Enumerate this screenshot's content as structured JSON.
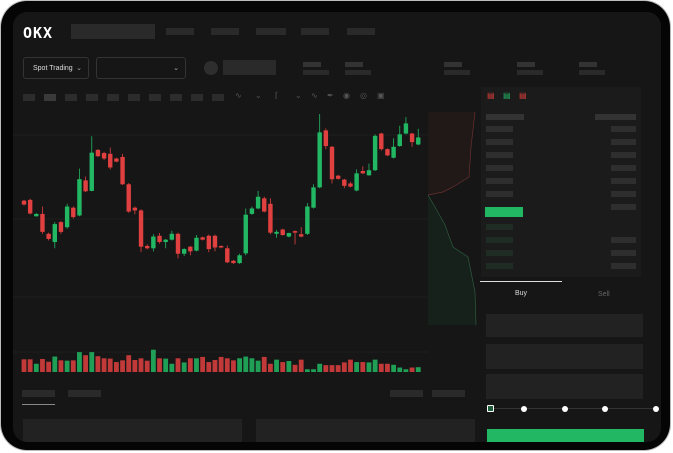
{
  "brand": {
    "logo_text": "OKX"
  },
  "toolbar": {
    "market_type": "Spot Trading",
    "pair_selector": ""
  },
  "order_form": {
    "buy_tab": "Buy",
    "sell_tab": "Sell",
    "active_tab": "Buy",
    "slider_percent": 0,
    "slider_stops": 5
  },
  "colors": {
    "up": "#22b863",
    "down": "#e0403f",
    "background": "#161616",
    "panel": "#1b1b1b"
  },
  "icons": [
    "chevron-down-icon",
    "line-tool-icon",
    "pen-icon",
    "camera-icon",
    "target-icon",
    "fullscreen-icon",
    "orderbook-both-icon",
    "orderbook-bids-icon",
    "orderbook-asks-icon"
  ],
  "chart_data": {
    "type": "candlestick",
    "candles": [
      [
        550,
        552,
        538,
        540
      ],
      [
        552,
        555,
        515,
        517
      ],
      [
        510,
        518,
        509,
        516
      ],
      [
        516,
        535,
        465,
        470
      ],
      [
        465,
        468,
        448,
        452
      ],
      [
        444,
        495,
        428,
        490
      ],
      [
        495,
        498,
        465,
        470
      ],
      [
        482,
        542,
        478,
        535
      ],
      [
        532,
        535,
        504,
        508
      ],
      [
        512,
        632,
        510,
        605
      ],
      [
        602,
        612,
        572,
        574
      ],
      [
        575,
        715,
        574,
        673
      ],
      [
        680,
        682,
        662,
        664
      ],
      [
        672,
        675,
        654,
        658
      ],
      [
        670,
        686,
        630,
        635
      ],
      [
        658,
        660,
        648,
        650
      ],
      [
        662,
        670,
        590,
        592
      ],
      [
        592,
        595,
        519,
        522
      ],
      [
        532,
        535,
        515,
        525
      ],
      [
        525,
        528,
        418,
        432
      ],
      [
        434,
        438,
        425,
        428
      ],
      [
        428,
        464,
        420,
        458
      ],
      [
        460,
        467,
        440,
        444
      ],
      [
        444,
        452,
        428,
        450
      ],
      [
        450,
        473,
        448,
        465
      ],
      [
        465,
        468,
        402,
        414
      ],
      [
        414,
        428,
        408,
        426
      ],
      [
        432,
        434,
        410,
        420
      ],
      [
        422,
        462,
        420,
        455
      ],
      [
        456,
        458,
        448,
        450
      ],
      [
        460,
        463,
        418,
        426
      ],
      [
        460,
        463,
        420,
        430
      ],
      [
        434,
        435,
        428,
        430
      ],
      [
        428,
        435,
        390,
        392
      ],
      [
        396,
        398,
        388,
        390
      ],
      [
        390,
        414,
        388,
        410
      ],
      [
        415,
        530,
        410,
        514
      ],
      [
        516,
        535,
        514,
        530
      ],
      [
        530,
        575,
        528,
        560
      ],
      [
        556,
        560,
        520,
        522
      ],
      [
        542,
        556,
        464,
        468
      ],
      [
        465,
        475,
        455,
        470
      ],
      [
        476,
        478,
        460,
        462
      ],
      [
        458,
        468,
        456,
        467
      ],
      [
        472,
        474,
        438,
        468
      ],
      [
        464,
        482,
        456,
        458
      ],
      [
        465,
        544,
        462,
        535
      ],
      [
        532,
        592,
        530,
        584
      ],
      [
        584,
        772,
        582,
        725
      ],
      [
        730,
        735,
        682,
        690
      ],
      [
        688,
        690,
        594,
        605
      ],
      [
        614,
        616,
        604,
        606
      ],
      [
        604,
        606,
        582,
        588
      ],
      [
        594,
        598,
        584,
        586
      ],
      [
        576,
        630,
        574,
        620
      ],
      [
        626,
        638,
        618,
        620
      ],
      [
        615,
        645,
        614,
        628
      ],
      [
        628,
        720,
        626,
        716
      ],
      [
        722,
        724,
        678,
        682
      ],
      [
        682,
        684,
        664,
        666
      ],
      [
        660,
        710,
        658,
        688
      ],
      [
        690,
        742,
        688,
        720
      ],
      [
        722,
        764,
        720,
        748
      ],
      [
        722,
        724,
        688,
        700
      ],
      [
        694,
        734,
        692,
        712
      ]
    ],
    "candle_format": [
      "open",
      "high",
      "low",
      "close"
    ],
    "volume": [
      37,
      37,
      24,
      38,
      30,
      45,
      34,
      33,
      34,
      58,
      49,
      58,
      46,
      40,
      39,
      29,
      34,
      49,
      35,
      40,
      33,
      65,
      40,
      39,
      24,
      40,
      28,
      40,
      40,
      44,
      29,
      35,
      44,
      40,
      34,
      40,
      45,
      40,
      33,
      44,
      24,
      36,
      29,
      32,
      21,
      36,
      8,
      8,
      24,
      20,
      20,
      20,
      28,
      36,
      29,
      29,
      28,
      36,
      24,
      24,
      21,
      13,
      8,
      13,
      14
    ],
    "grid": true
  }
}
